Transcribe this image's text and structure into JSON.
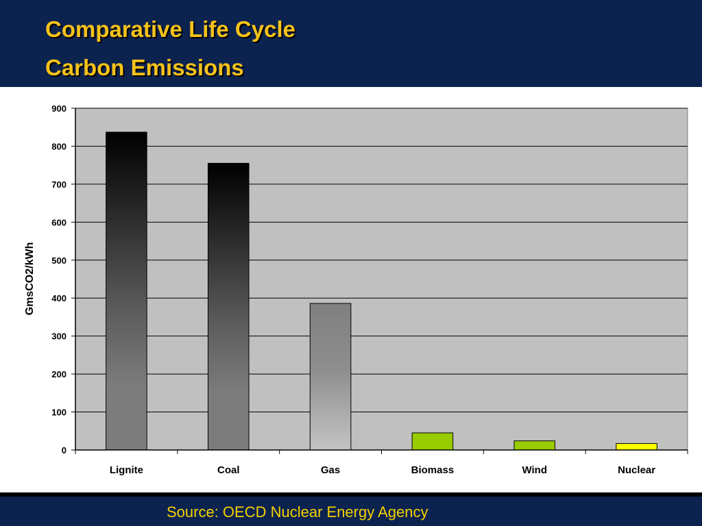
{
  "header": {
    "title_line1": "Comparative Life Cycle",
    "title_line2": "Carbon Emissions"
  },
  "footer": {
    "source": "Source: OECD Nuclear Energy Agency"
  },
  "colors": {
    "navy": "#0c2350",
    "title_gold": "#f5c21a",
    "source_yellow": "#f5d000",
    "plot_background": "#c0c0c0"
  },
  "chart_data": {
    "type": "bar",
    "title": "",
    "xlabel": "",
    "ylabel": "GmsCO2/kWh",
    "ylim": [
      0,
      900
    ],
    "yticks": [
      0,
      100,
      200,
      300,
      400,
      500,
      600,
      700,
      800,
      900
    ],
    "grid": true,
    "legend": "none",
    "categories": [
      "Lignite",
      "Coal",
      "Gas",
      "Biomass",
      "Wind",
      "Nuclear"
    ],
    "values": [
      837,
      755,
      386,
      45,
      24,
      17
    ],
    "bar_styles": [
      "dark-gradient",
      "dark-gradient",
      "gray-gradient",
      "green",
      "green",
      "yellow"
    ]
  }
}
